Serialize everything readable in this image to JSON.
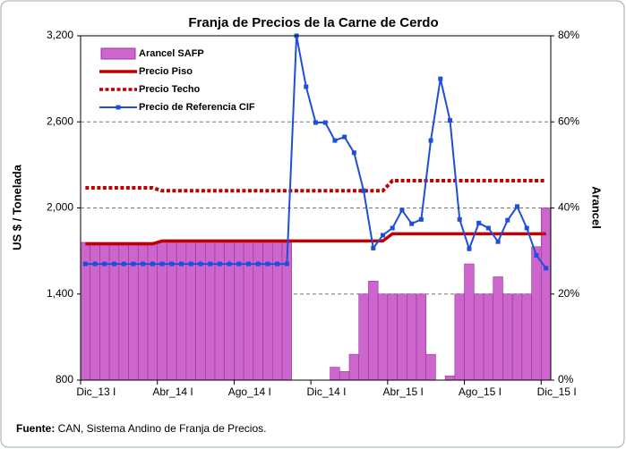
{
  "chart_data": {
    "type": "bar_line",
    "title": "Franja de Precios de la Carne de Cerdo",
    "ylabel": "US $ / Tonelada",
    "y2label": "Arancel",
    "source": {
      "label": "Fuente:",
      "text": " CAN, Sistema Andino de Franja de Precios."
    },
    "categories": [
      "Dic_13 I",
      null,
      null,
      null,
      null,
      null,
      null,
      null,
      "Abr_14 I",
      null,
      null,
      null,
      null,
      null,
      null,
      null,
      "Ago_14 I",
      null,
      null,
      null,
      null,
      null,
      null,
      null,
      "Dic_14 I",
      null,
      null,
      null,
      null,
      null,
      null,
      null,
      "Abr_15 I",
      null,
      null,
      null,
      null,
      null,
      null,
      null,
      "Ago_15 I",
      null,
      null,
      null,
      null,
      null,
      null,
      null,
      "Dic_15 I"
    ],
    "ylim": [
      800,
      3200
    ],
    "yticks": [
      800,
      {
        "value": 1400,
        "label": "1,400"
      },
      {
        "value": 2000,
        "label": "2,000"
      },
      {
        "value": 2600,
        "label": "2,600"
      },
      {
        "value": 3200,
        "label": "3,200"
      }
    ],
    "y2lim": [
      0,
      80
    ],
    "y2ticks": [
      {
        "value": 0,
        "label": "0%"
      },
      {
        "value": 20,
        "label": "20%"
      },
      {
        "value": 40,
        "label": "40%"
      },
      {
        "value": 60,
        "label": "60%"
      },
      {
        "value": 80,
        "label": "80%"
      }
    ],
    "grid": true,
    "legend": "upper left",
    "series": [
      {
        "name": "Arancel SAFP",
        "kind": "bar",
        "axis": "y2",
        "color": "#cc66cc",
        "values": [
          32,
          32,
          32,
          32,
          32,
          32,
          32,
          32,
          32,
          32,
          32,
          32,
          32,
          32,
          32,
          32,
          32,
          32,
          32,
          32,
          32,
          32,
          0,
          0,
          0,
          0,
          3,
          2,
          6,
          20,
          23,
          20,
          20,
          20,
          20,
          20,
          6,
          0,
          1,
          20,
          27,
          20,
          20,
          24,
          20,
          20,
          20,
          31,
          40
        ]
      },
      {
        "name": "Precio Piso",
        "kind": "line",
        "color": "#c00000",
        "values": [
          1750,
          1750,
          1750,
          1750,
          1750,
          1750,
          1750,
          1750,
          1770,
          1770,
          1770,
          1770,
          1770,
          1770,
          1770,
          1770,
          1770,
          1770,
          1770,
          1770,
          1770,
          1770,
          1770,
          1770,
          1770,
          1770,
          1770,
          1770,
          1770,
          1770,
          1770,
          1770,
          1820,
          1820,
          1820,
          1820,
          1820,
          1820,
          1820,
          1820,
          1820,
          1820,
          1820,
          1820,
          1820,
          1820,
          1820,
          1820,
          1820
        ]
      },
      {
        "name": "Precio Techo",
        "kind": "dashed",
        "color": "#c00000",
        "values": [
          2140,
          2140,
          2140,
          2140,
          2140,
          2140,
          2140,
          2140,
          2120,
          2120,
          2120,
          2120,
          2120,
          2120,
          2120,
          2120,
          2120,
          2120,
          2120,
          2120,
          2120,
          2120,
          2120,
          2120,
          2120,
          2120,
          2120,
          2120,
          2120,
          2120,
          2120,
          2120,
          2190,
          2190,
          2190,
          2190,
          2190,
          2190,
          2190,
          2190,
          2190,
          2190,
          2190,
          2190,
          2190,
          2190,
          2190,
          2190,
          2190
        ]
      },
      {
        "name": "Precio de Referencia CIF",
        "kind": "marker",
        "color": "#1f4fd8",
        "values": [
          1610,
          1610,
          1610,
          1610,
          1610,
          1610,
          1610,
          1610,
          1610,
          1610,
          1610,
          1610,
          1610,
          1610,
          1610,
          1610,
          1610,
          1610,
          1610,
          1610,
          1610,
          1610,
          3200,
          2845,
          2595,
          2595,
          2470,
          2495,
          2385,
          2120,
          1720,
          1810,
          1860,
          1985,
          1890,
          1920,
          2470,
          2900,
          2610,
          1920,
          1715,
          1895,
          1860,
          1765,
          1915,
          2010,
          1860,
          1670,
          1580
        ]
      }
    ]
  }
}
